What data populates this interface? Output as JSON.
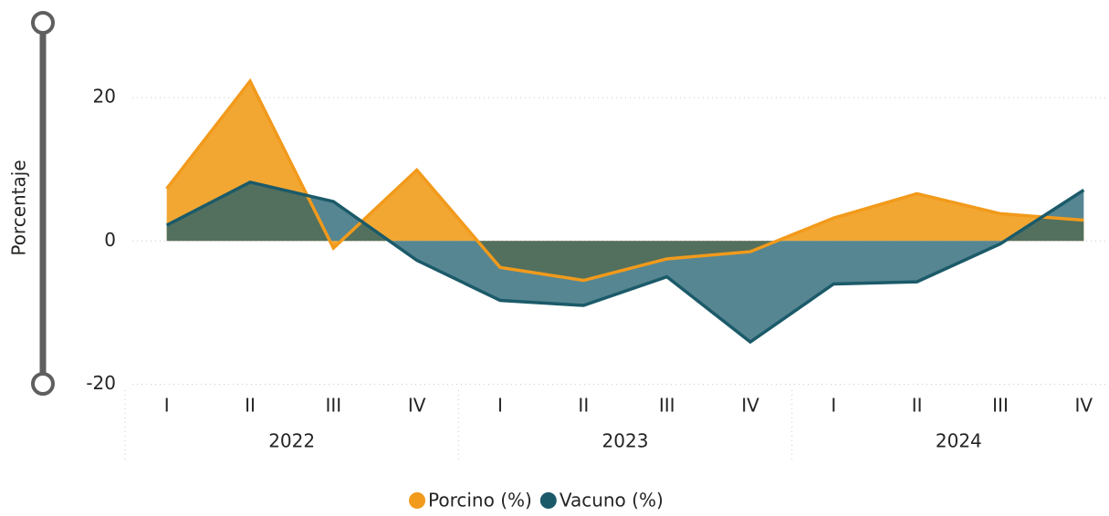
{
  "chart_data": {
    "type": "area",
    "y_label": "Porcentaje",
    "categories": [
      "I",
      "II",
      "III",
      "IV",
      "I",
      "II",
      "III",
      "IV",
      "I",
      "II",
      "III",
      "IV"
    ],
    "years": [
      "2022",
      "2023",
      "2024"
    ],
    "series": [
      {
        "name": "Porcino (%)",
        "color": "#F2A733",
        "line_color": "#F29A1B",
        "values": [
          7.3,
          22.3,
          -1.0,
          9.9,
          -3.7,
          -5.5,
          -2.5,
          -1.5,
          3.2,
          6.6,
          3.8,
          2.9
        ]
      },
      {
        "name": "Vacuno (%)",
        "color": "#1E5D6E",
        "line_color": "#1B5A69",
        "values": [
          2.2,
          8.2,
          5.5,
          -2.7,
          -8.3,
          -9.0,
          -5.0,
          -14.1,
          -6.0,
          -5.7,
          -0.4,
          7.1
        ]
      }
    ],
    "ylim": [
      -20,
      30
    ],
    "yticks": [
      -20,
      0,
      20
    ],
    "grid": true,
    "legend": "bottom"
  }
}
